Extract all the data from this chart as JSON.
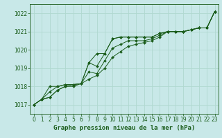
{
  "title": "Graphe pression niveau de la mer (hPa)",
  "background_color": "#c8e8e8",
  "grid_color": "#b0d8d0",
  "line_color": "#1a5c1a",
  "marker_color": "#1a5c1a",
  "xlim": [
    -0.5,
    23.5
  ],
  "ylim": [
    1016.5,
    1022.5
  ],
  "yticks": [
    1017,
    1018,
    1019,
    1020,
    1021,
    1022
  ],
  "xticks": [
    0,
    1,
    2,
    3,
    4,
    5,
    6,
    7,
    8,
    9,
    10,
    11,
    12,
    13,
    14,
    15,
    16,
    17,
    18,
    19,
    20,
    21,
    22,
    23
  ],
  "series": [
    [
      1017.0,
      1017.3,
      1017.4,
      1017.8,
      1018.0,
      1018.1,
      1018.15,
      1019.3,
      1019.1,
      1019.8,
      1020.6,
      1020.7,
      1020.7,
      1020.7,
      1020.7,
      1020.7,
      1020.9,
      1021.0,
      1021.0,
      1021.0,
      1021.1,
      1021.2,
      1021.2,
      1022.1
    ],
    [
      1017.0,
      1017.3,
      1017.4,
      1017.8,
      1018.0,
      1018.0,
      1018.15,
      1018.8,
      1018.7,
      1019.4,
      1020.1,
      1020.3,
      1020.5,
      1020.5,
      1020.5,
      1020.6,
      1020.8,
      1021.0,
      1021.0,
      1021.0,
      1021.1,
      1021.2,
      1021.2,
      1022.1
    ],
    [
      1017.0,
      1017.3,
      1017.7,
      1018.0,
      1018.1,
      1018.1,
      1018.15,
      1019.3,
      1019.8,
      1019.8,
      1020.6,
      1020.7,
      1020.7,
      1020.7,
      1020.7,
      1020.7,
      1020.9,
      1021.0,
      1021.0,
      1021.0,
      1021.1,
      1021.2,
      1021.2,
      1022.1
    ],
    [
      1017.0,
      1017.3,
      1018.0,
      1018.0,
      1018.1,
      1018.1,
      1018.15,
      1018.4,
      1018.6,
      1019.0,
      1019.6,
      1019.9,
      1020.2,
      1020.3,
      1020.4,
      1020.5,
      1020.7,
      1021.0,
      1021.0,
      1021.0,
      1021.1,
      1021.2,
      1021.2,
      1022.1
    ]
  ],
  "tick_fontsize": 5.5,
  "label_fontsize": 6.5
}
